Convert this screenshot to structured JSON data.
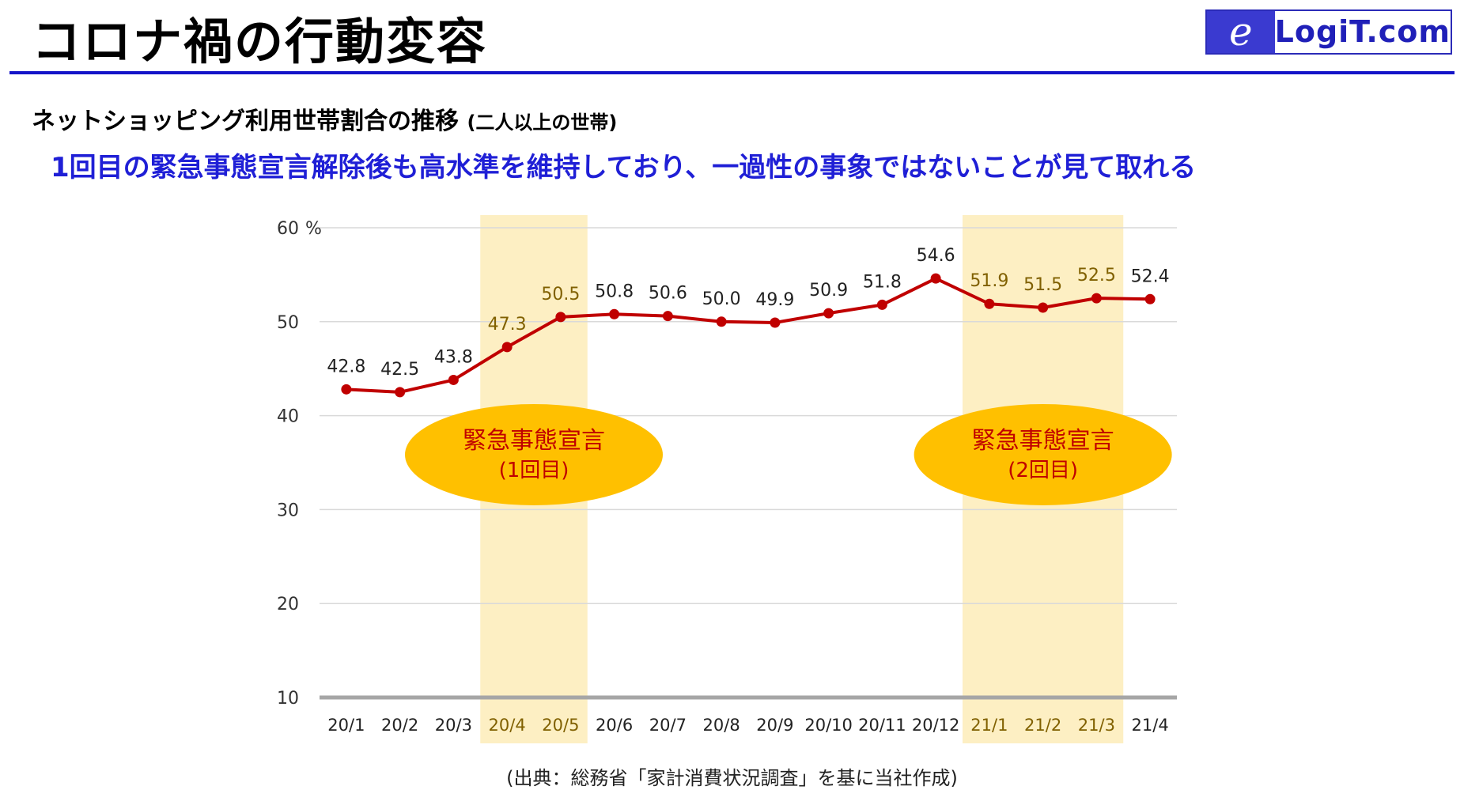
{
  "title": "コロナ禍の行動変容",
  "logo": {
    "mark": "e",
    "text": "LogiT.com"
  },
  "subtitle": "ネットショッピング利用世帯割合の推移",
  "subtitle_note": "(二人以上の世帯)",
  "headline": "1回目の緊急事態宣言解除後も高水準を維持しており、一過性の事象ではないことが見て取れる",
  "source": "(出典：総務省「家計消費状況調査」を基に当社作成)",
  "colors": {
    "line": "#c00000",
    "highlight_band": "#fdefc3",
    "ellipse": "#ffc000",
    "ellipse_text": "#c00000",
    "highlight_label": "#806000"
  },
  "chart_data": {
    "type": "line",
    "categories": [
      "20/1",
      "20/2",
      "20/3",
      "20/4",
      "20/5",
      "20/6",
      "20/7",
      "20/8",
      "20/9",
      "20/10",
      "20/11",
      "20/12",
      "21/1",
      "21/2",
      "21/3",
      "21/4"
    ],
    "series": [
      {
        "values": [
          42.8,
          42.5,
          43.8,
          47.3,
          50.5,
          50.8,
          50.6,
          50.0,
          49.9,
          50.9,
          51.8,
          54.6,
          51.9,
          51.5,
          52.5,
          52.4
        ]
      }
    ],
    "data_labels": [
      "42.8",
      "42.5",
      "43.8",
      "47.3",
      "50.5",
      "50.8",
      "50.6",
      "50.0",
      "49.9",
      "50.9",
      "51.8",
      "54.6",
      "51.9",
      "51.5",
      "52.5",
      "52.4"
    ],
    "ylim": [
      10,
      60
    ],
    "yticks": [
      10,
      20,
      30,
      40,
      50,
      60
    ],
    "ytick_labels": [
      "10",
      "20",
      "30",
      "40",
      "50",
      "60"
    ],
    "yunit": "%",
    "grid": true,
    "legend": "none",
    "highlight_periods": [
      {
        "start": "20/4",
        "end": "20/5",
        "label_line1": "緊急事態宣言",
        "label_line2": "(1回目)"
      },
      {
        "start": "21/1",
        "end": "21/3",
        "label_line1": "緊急事態宣言",
        "label_line2": "(2回目)"
      }
    ]
  }
}
